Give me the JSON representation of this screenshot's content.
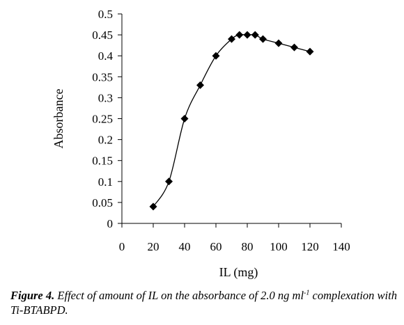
{
  "chart_data": {
    "type": "line",
    "x": [
      20,
      30,
      40,
      50,
      60,
      70,
      75,
      80,
      85,
      90,
      100,
      110,
      120
    ],
    "y": [
      0.04,
      0.1,
      0.25,
      0.33,
      0.4,
      0.44,
      0.45,
      0.45,
      0.45,
      0.44,
      0.43,
      0.42,
      0.41
    ],
    "xlabel": "IL (mg)",
    "ylabel": "Absorbance",
    "xlim": [
      0,
      140
    ],
    "ylim": [
      0,
      0.5
    ],
    "xticks": [
      "0",
      "20",
      "40",
      "60",
      "80",
      "100",
      "120",
      "140"
    ],
    "yticks": [
      "0",
      "0.05",
      "0.1",
      "0.15",
      "0.2",
      "0.25",
      "0.3",
      "0.35",
      "0.4",
      "0.45",
      "0.5"
    ],
    "marker": "diamond",
    "color": "#000000",
    "grid": false,
    "legend": "none"
  },
  "caption": {
    "label": "Figure 4.",
    "text_before_sup": " Effect of amount of IL on the absorbance of 2.0 ng ml",
    "sup": "-1",
    "text_after_sup": " complexation with  Ti-BTABPD."
  }
}
